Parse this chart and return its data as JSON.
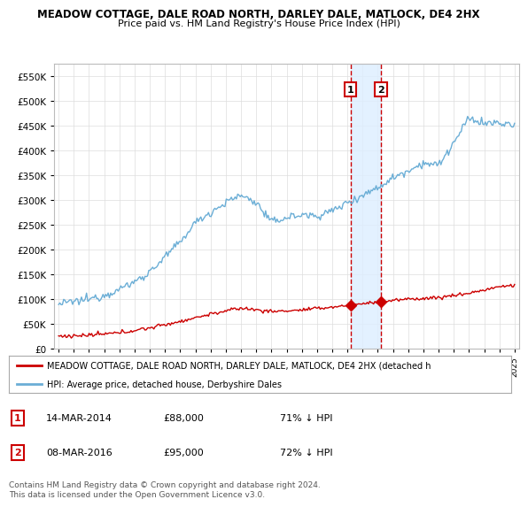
{
  "title": "MEADOW COTTAGE, DALE ROAD NORTH, DARLEY DALE, MATLOCK, DE4 2HX",
  "subtitle": "Price paid vs. HM Land Registry's House Price Index (HPI)",
  "legend_line1": "MEADOW COTTAGE, DALE ROAD NORTH, DARLEY DALE, MATLOCK, DE4 2HX (detached h",
  "legend_line2": "HPI: Average price, detached house, Derbyshire Dales",
  "sale1_date": "14-MAR-2014",
  "sale1_price": 88000,
  "sale1_label": "1",
  "sale1_hpi": "71% ↓ HPI",
  "sale1_year": 2014.2,
  "sale2_date": "08-MAR-2016",
  "sale2_price": 95000,
  "sale2_label": "2",
  "sale2_hpi": "72% ↓ HPI",
  "sale2_year": 2016.2,
  "footnote": "Contains HM Land Registry data © Crown copyright and database right 2024.\nThis data is licensed under the Open Government Licence v3.0.",
  "hpi_color": "#6baed6",
  "price_color": "#cc0000",
  "vline_color": "#cc0000",
  "highlight_color": "#ddeeff",
  "ylim": [
    0,
    575000
  ],
  "yticks": [
    0,
    50000,
    100000,
    150000,
    200000,
    250000,
    300000,
    350000,
    400000,
    450000,
    500000,
    550000
  ],
  "xmin": 1994.7,
  "xmax": 2025.3
}
